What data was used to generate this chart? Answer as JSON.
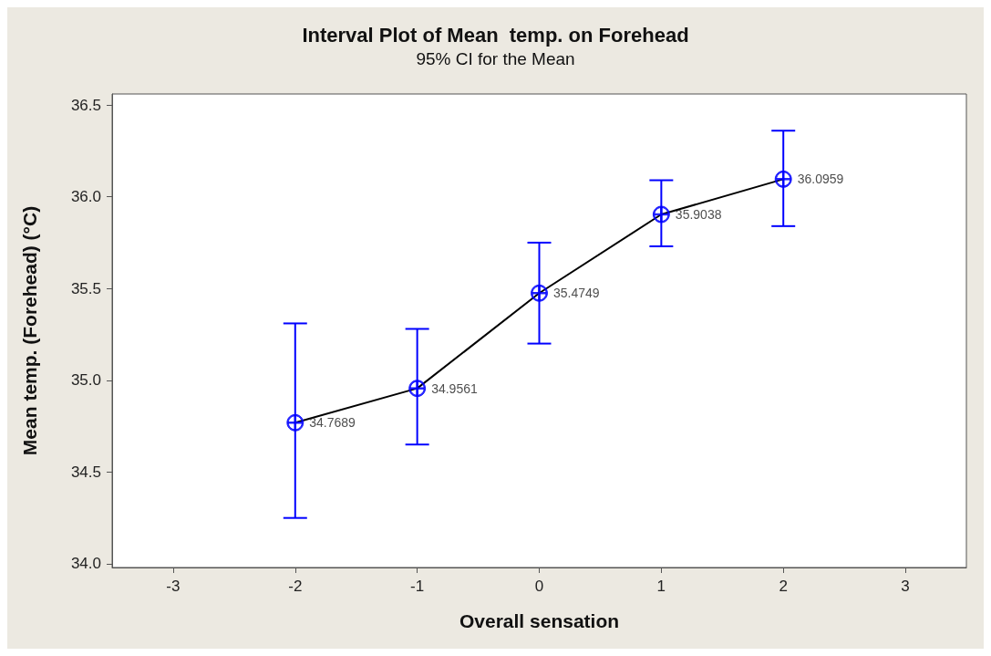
{
  "chart_data": {
    "type": "line",
    "title": "Interval Plot of Mean  temp. on Forehead",
    "subtitle": "95% CI for the Mean",
    "xlabel": "Overall sensation",
    "ylabel": "Mean temp. (Forehead) (°C)",
    "x": [
      -2,
      -1,
      0,
      1,
      2
    ],
    "series": [
      {
        "color": "#000000",
        "marker": "none",
        "values": [
          34.7689,
          34.9561,
          35.4749,
          35.9038,
          36.0959
        ]
      },
      {
        "type": "scatter",
        "color": "#0000ff",
        "marker": "circle",
        "values": [
          34.7689,
          34.9561,
          35.4749,
          35.9038,
          36.0959
        ],
        "value_labels": [
          "34.7689",
          "34.9561",
          "35.4749",
          "35.9038",
          "36.0959"
        ],
        "errors": [
          [
            34.25,
            35.31
          ],
          [
            34.65,
            35.28
          ],
          [
            35.2,
            35.75
          ],
          [
            35.73,
            36.09
          ],
          [
            35.84,
            36.36
          ]
        ]
      }
    ],
    "xlim": [
      -3.5,
      3.5
    ],
    "xticks": [
      -3,
      -2,
      -1,
      0,
      1,
      2,
      3
    ],
    "ylim": [
      33.98,
      36.56
    ],
    "yticks": [
      {
        "value": 34,
        "label": "34.0"
      },
      34.5,
      {
        "value": 35,
        "label": "35.0"
      },
      35.5,
      {
        "value": 36,
        "label": "36.0"
      },
      36.5
    ],
    "grid": false
  }
}
